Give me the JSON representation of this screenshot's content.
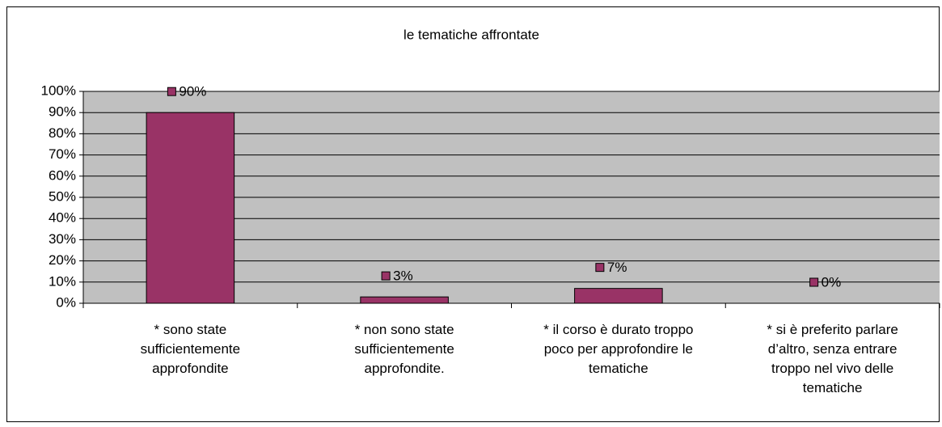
{
  "chart_data": {
    "type": "bar",
    "title": "le tematiche affrontate",
    "categories": [
      "* sono state sufficientemente approfondite",
      "* non sono state sufficientemente approfondite.",
      "* il corso è durato troppo poco per approfondire le tematiche",
      "* si è preferito parlare d’altro, senza entrare troppo nel vivo delle tematiche"
    ],
    "values": [
      90,
      3,
      7,
      0
    ],
    "value_labels": [
      "90%",
      "3%",
      "7%",
      "0%"
    ],
    "color": "#993366",
    "ylim": [
      0,
      100
    ],
    "yticks": [
      {
        "value": 0,
        "label": "0%"
      },
      {
        "value": 10,
        "label": "10%"
      },
      {
        "value": 20,
        "label": "20%"
      },
      {
        "value": 30,
        "label": "30%"
      },
      {
        "value": 40,
        "label": "40%"
      },
      {
        "value": 50,
        "label": "50%"
      },
      {
        "value": 60,
        "label": "60%"
      },
      {
        "value": 70,
        "label": "70%"
      },
      {
        "value": 80,
        "label": "80%"
      },
      {
        "value": 90,
        "label": "90%"
      },
      {
        "value": 100,
        "label": "100%"
      }
    ],
    "grid": true
  }
}
